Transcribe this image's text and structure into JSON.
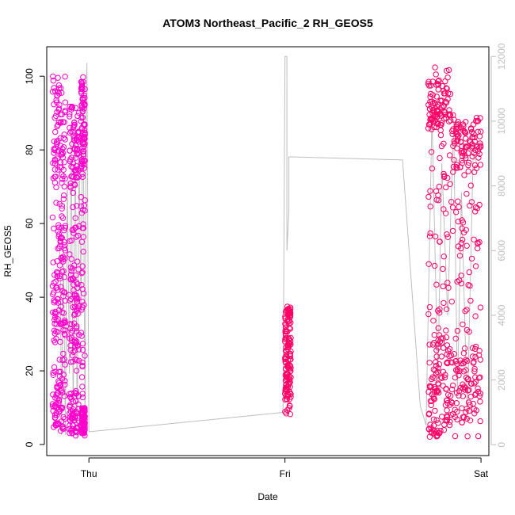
{
  "chart_data": {
    "type": "scatter",
    "title": "ATOM3 Northeast_Pacific_2 RH_GEOS5",
    "xlabel": "Date",
    "ylabel": "RH_GEOS5",
    "x_ticks": [
      "Thu",
      "Fri",
      "Sat"
    ],
    "x_tick_values": [
      0,
      1,
      2
    ],
    "xlim": [
      -0.215,
      2.04
    ],
    "y_ticks": [
      "0",
      "20",
      "40",
      "60",
      "80",
      "100"
    ],
    "y_tick_values": [
      0,
      20,
      40,
      60,
      80,
      100
    ],
    "ylim": [
      -3,
      108
    ],
    "y2_ticks": [
      "0",
      "2000",
      "4000",
      "6000",
      "8000",
      "10000",
      "12000"
    ],
    "y2_tick_values": [
      0,
      2000,
      4000,
      6000,
      8000,
      10000,
      12000
    ],
    "y2lim": [
      -335,
      12300
    ],
    "colors": {
      "points_a": "#ff00cc",
      "points_b": "#ff0066",
      "altitude_line": "#bebebe",
      "axis": "#000000",
      "axis_right": "#bebebe"
    },
    "series": [
      {
        "type": "line",
        "axis": "right",
        "points": [
          [
            -0.15,
            6300
          ],
          [
            -0.145,
            5200
          ],
          [
            -0.14,
            300
          ],
          [
            -0.13,
            6200
          ],
          [
            -0.12,
            300
          ],
          [
            -0.11,
            8200
          ],
          [
            -0.1,
            2200
          ],
          [
            -0.09,
            9600
          ],
          [
            -0.08,
            800
          ],
          [
            -0.07,
            10200
          ],
          [
            -0.06,
            200
          ],
          [
            -0.05,
            9000
          ],
          [
            -0.04,
            4000
          ],
          [
            -0.03,
            11200
          ],
          [
            -0.02,
            300
          ],
          [
            -0.015,
            9800
          ],
          [
            -0.01,
            11800
          ],
          [
            0,
            400
          ],
          [
            0.99,
            1000
          ],
          [
            1.0,
            12000
          ],
          [
            1.01,
            12000
          ],
          [
            1.01,
            6000
          ],
          [
            1.02,
            7200
          ],
          [
            1.02,
            8900
          ],
          [
            1.6,
            8800
          ],
          [
            1.69,
            1200
          ],
          [
            1.72,
            600
          ],
          [
            1.75,
            10200
          ],
          [
            1.78,
            2000
          ],
          [
            1.8,
            8700
          ],
          [
            1.83,
            4000
          ],
          [
            1.86,
            10000
          ],
          [
            1.88,
            1500
          ],
          [
            1.9,
            7800
          ],
          [
            1.93,
            800
          ],
          [
            1.96,
            9000
          ],
          [
            1.97,
            8800
          ],
          [
            1.98,
            8700
          ]
        ]
      },
      {
        "type": "scatter",
        "name": "RH_GEOS5",
        "color": "#ff00cc",
        "clusters": [
          {
            "x": [
              -0.185,
              -0.12
            ],
            "y": [
              2,
              100
            ],
            "n": 260,
            "dense_bands": [
              [
                72,
                98
              ],
              [
                30,
                60
              ],
              [
                3,
                20
              ]
            ]
          },
          {
            "x": [
              -0.1,
              -0.05
            ],
            "y": [
              2,
              95
            ],
            "n": 220,
            "dense_bands": [
              [
                72,
                92
              ],
              [
                20,
                45
              ],
              [
                3,
                15
              ]
            ]
          },
          {
            "x": [
              -0.04,
              -0.02
            ],
            "y": [
              2,
              100
            ],
            "n": 180,
            "dense_bands": [
              [
                75,
                100
              ],
              [
                3,
                10
              ]
            ]
          }
        ]
      },
      {
        "type": "scatter",
        "name": "RH_GEOS5",
        "color": "#ff0066",
        "clusters": [
          {
            "x": [
              1.0,
              1.03
            ],
            "y": [
              8,
              38
            ],
            "n": 140,
            "dense_bands": [
              [
                12,
                38
              ]
            ]
          },
          {
            "x": [
              1.73,
              1.85
            ],
            "y": [
              1,
              104
            ],
            "n": 260,
            "dense_bands": [
              [
                85,
                100
              ],
              [
                2,
                30
              ]
            ]
          },
          {
            "x": [
              1.85,
              2.0
            ],
            "y": [
              2,
              90
            ],
            "n": 240,
            "dense_bands": [
              [
                5,
                25
              ],
              [
                75,
                88
              ]
            ]
          }
        ]
      }
    ],
    "grid": false,
    "legend": "none"
  }
}
